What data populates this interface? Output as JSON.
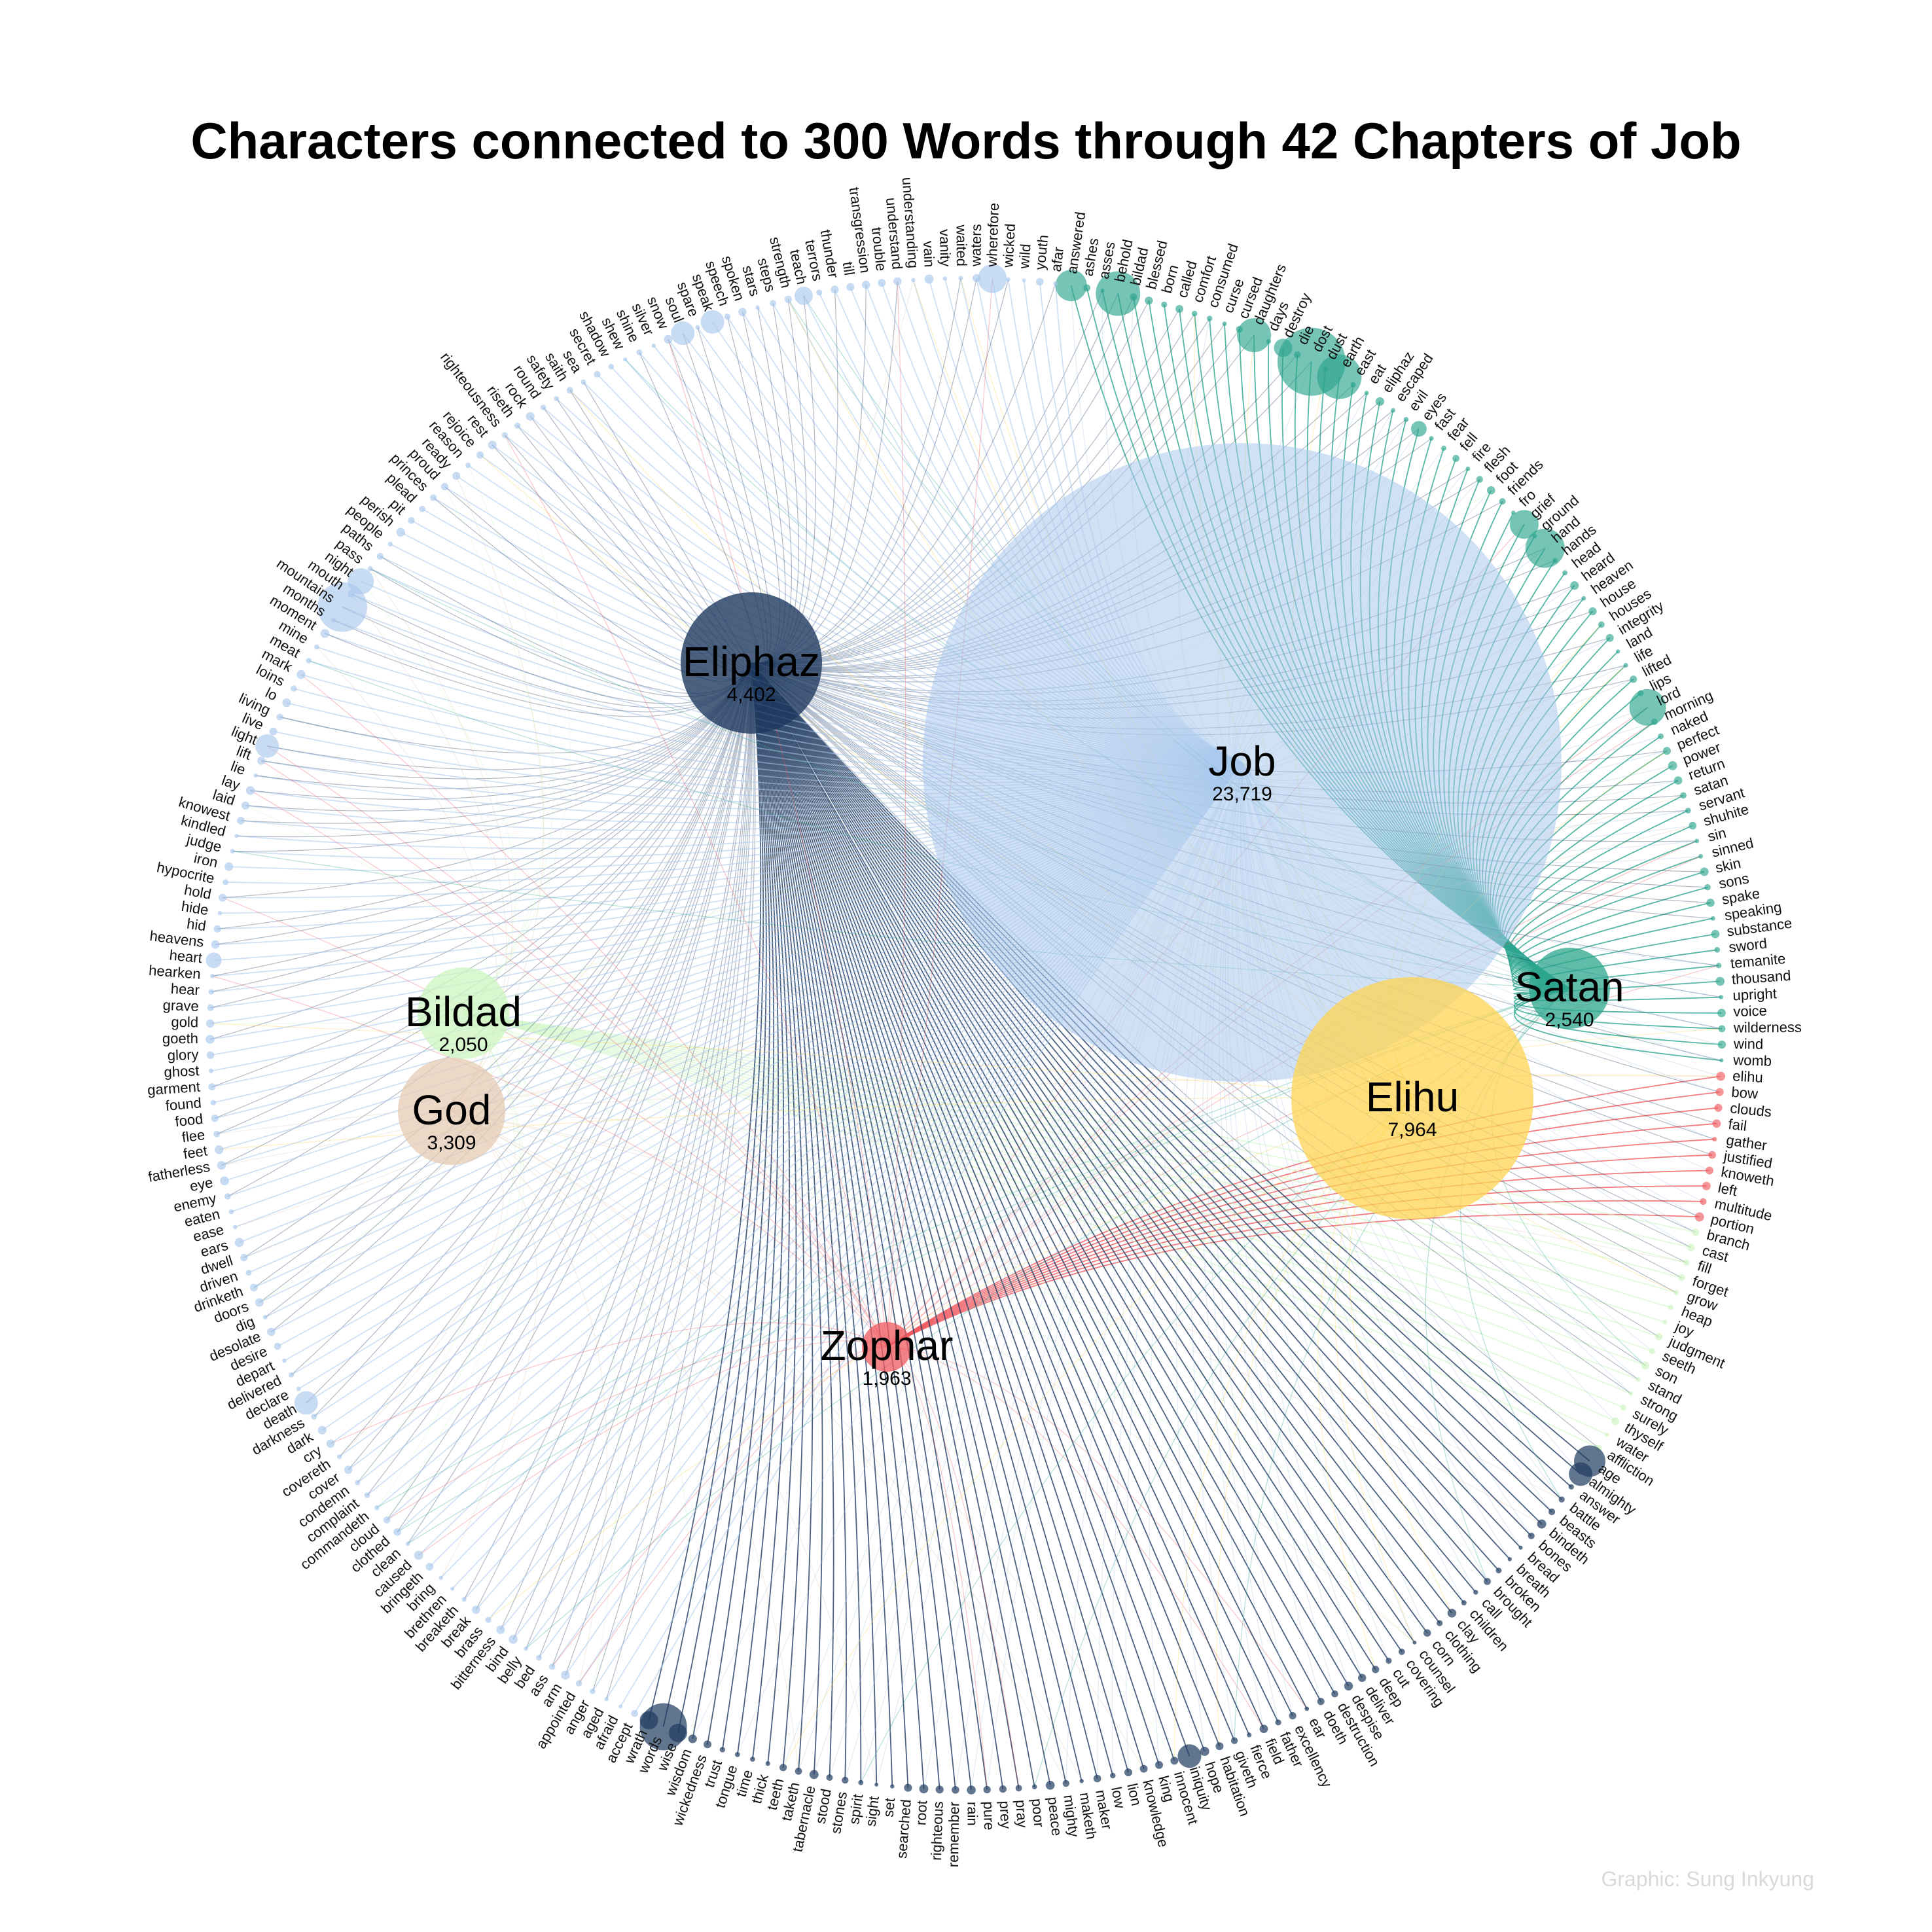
{
  "title": "Characters connected to 300 Words through 42 Chapters of Job",
  "credit": "Graphic: Sung Inkyung",
  "characters": [
    {
      "name": "Eliphaz",
      "count": "4,402",
      "color": "#1f3a5f"
    },
    {
      "name": "Job",
      "count": "23,719",
      "color": "#a9c8ec"
    },
    {
      "name": "Satan",
      "count": "2,540",
      "color": "#2ca58d"
    },
    {
      "name": "Elihu",
      "count": "7,964",
      "color": "#ffd452"
    },
    {
      "name": "Bildad",
      "count": "2,050",
      "color": "#ccf5c0"
    },
    {
      "name": "God",
      "count": "3,309",
      "color": "#e6cbb3"
    },
    {
      "name": "Zophar",
      "count": "1,963",
      "color": "#f05a5f"
    }
  ],
  "word_groups": [
    {
      "character": "Satan",
      "words": [
        "answered",
        "ashes",
        "asses",
        "behold",
        "bildad",
        "blessed",
        "born",
        "called",
        "comfort",
        "consumed",
        "curse",
        "cursed",
        "daughters",
        "days",
        "destroy",
        "die",
        "dost",
        "dust",
        "earth",
        "east",
        "eat",
        "eliphaz",
        "escaped",
        "evil",
        "eyes",
        "fast",
        "fear",
        "fell",
        "fire",
        "flesh",
        "foot",
        "friends",
        "fro",
        "grief",
        "ground",
        "hand",
        "hands",
        "head",
        "heard",
        "heaven",
        "house",
        "houses",
        "integrity",
        "land",
        "life",
        "lifted",
        "lips",
        "lord",
        "morning",
        "naked",
        "perfect",
        "power",
        "return",
        "satan",
        "servant",
        "shuhite",
        "sin",
        "sinned",
        "skin",
        "sons",
        "spake",
        "speaking",
        "substance",
        "sword",
        "temanite",
        "thousand",
        "upright",
        "voice",
        "wilderness",
        "wind",
        "womb"
      ]
    },
    {
      "character": "Zophar",
      "words": [
        "elihu",
        "bow",
        "clouds",
        "fail",
        "gather",
        "justified",
        "knoweth",
        "left",
        "multitude",
        "portion"
      ]
    },
    {
      "character": "Bildad",
      "words": [
        "branch",
        "cast",
        "fill",
        "forget",
        "grow",
        "heap",
        "joy",
        "judgment",
        "seeth",
        "son",
        "stand",
        "strong",
        "surely",
        "thyself",
        "water",
        "affliction"
      ]
    },
    {
      "character": "Eliphaz",
      "words": [
        "age",
        "almighty",
        "answer",
        "battle",
        "beasts",
        "bindeth",
        "bones",
        "bread",
        "breath",
        "broken",
        "brought",
        "call",
        "children",
        "clay",
        "clothing",
        "corn",
        "counsel",
        "covering",
        "cut",
        "deep",
        "deliver",
        "despise",
        "destruction",
        "doeth",
        "ear",
        "excellency",
        "father",
        "field",
        "fierce",
        "giveth",
        "habitation",
        "hope",
        "iniquity",
        "innocent",
        "king",
        "knowledge",
        "lion",
        "low",
        "maker",
        "maketh",
        "mighty",
        "peace",
        "poor",
        "pray",
        "prey",
        "pure",
        "rain",
        "remember",
        "righteous",
        "root",
        "searched",
        "set",
        "sight",
        "spirit",
        "stones",
        "stood",
        "tabernacle",
        "taketh",
        "teeth",
        "thick",
        "time",
        "tongue",
        "trust",
        "wickedness",
        "wisdom",
        "wise",
        "words",
        "wrath"
      ]
    },
    {
      "character": "Job",
      "words": [
        "accept",
        "afraid",
        "aged",
        "anger",
        "appointed",
        "arm",
        "ass",
        "bed",
        "belly",
        "bind",
        "bitterness",
        "brass",
        "break",
        "breaketh",
        "brethren",
        "bring",
        "bringeth",
        "caused",
        "clean",
        "clothed",
        "cloud",
        "commandeth",
        "complaint",
        "condemn",
        "cover",
        "covereth",
        "cry",
        "dark",
        "darkness",
        "death",
        "declare",
        "delivered",
        "depart",
        "desire",
        "desolate",
        "dig",
        "doors",
        "drinketh",
        "driven",
        "dwell",
        "ears",
        "ease",
        "eaten",
        "enemy",
        "eye",
        "fatherless",
        "feet",
        "flee",
        "food",
        "found",
        "garment",
        "ghost",
        "glory",
        "goeth",
        "gold",
        "grave",
        "hear",
        "hearken",
        "heart",
        "heavens",
        "hid",
        "hide",
        "hold",
        "hypocrite",
        "iron",
        "judge",
        "kindled",
        "knowest",
        "laid",
        "lay",
        "lie",
        "lift",
        "light",
        "live",
        "living",
        "lo",
        "loins",
        "mark",
        "meat",
        "mine",
        "moment",
        "months",
        "mountains",
        "mouth",
        "night",
        "pass",
        "paths",
        "people",
        "perish",
        "pit",
        "plead",
        "princes",
        "proud",
        "ready",
        "reason",
        "rejoice",
        "rest",
        "righteousness",
        "riseth",
        "rock",
        "round",
        "safety",
        "saith",
        "sea",
        "secret",
        "shadow",
        "shew",
        "shine",
        "silver",
        "snow",
        "soul",
        "spare",
        "speak",
        "speech",
        "spoken",
        "stars",
        "steps",
        "strength",
        "teach",
        "terrors",
        "thunder",
        "till",
        "transgression",
        "trouble",
        "understand",
        "understanding",
        "vain",
        "vanity",
        "waited",
        "waters",
        "wherefore",
        "wicked",
        "wild",
        "youth",
        "afar"
      ]
    }
  ]
}
